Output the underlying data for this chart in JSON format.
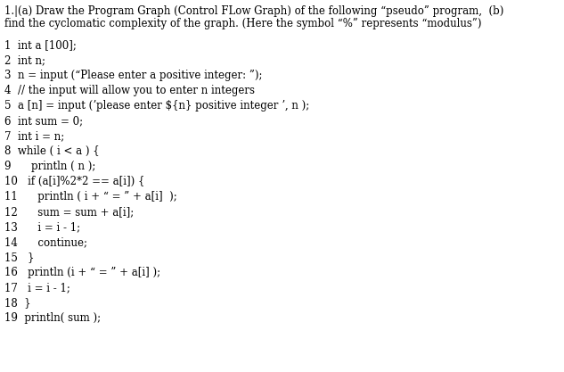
{
  "background_color": "#ffffff",
  "header_line1": "1.|(a) Draw the Program Graph (Control FLow Graph) of the following “pseudo” program,  (b)",
  "header_line2": "find the cyclomatic complexity of the graph. (Here the symbol “%” represents “modulus”)",
  "code_lines": [
    "1  int a [100];",
    "2  int n;",
    "3  n = input (“Please enter a positive integer: ”);",
    "4  // the input will allow you to enter n integers",
    "5  a [n] = input (ʼplease enter ${n} positive integer ʼ, n );",
    "6  int sum = 0;",
    "7  int i = n;",
    "8  while ( i < a ) {",
    "9      println ( n );",
    "10   if (a[i]%2*2 == a[i]) {",
    "11      println ( i + “ = ” + a[i]  );",
    "12      sum = sum + a[i];",
    "13      i = i - 1;",
    "14      continue;",
    "15   }",
    "16   println (i + “ = ” + a[i] );",
    "17   i = i - 1;",
    "18  }",
    "19  println( sum );"
  ],
  "header_fontsize": 8.5,
  "code_fontsize": 8.5,
  "figsize": [
    6.33,
    4.17
  ],
  "dpi": 100
}
